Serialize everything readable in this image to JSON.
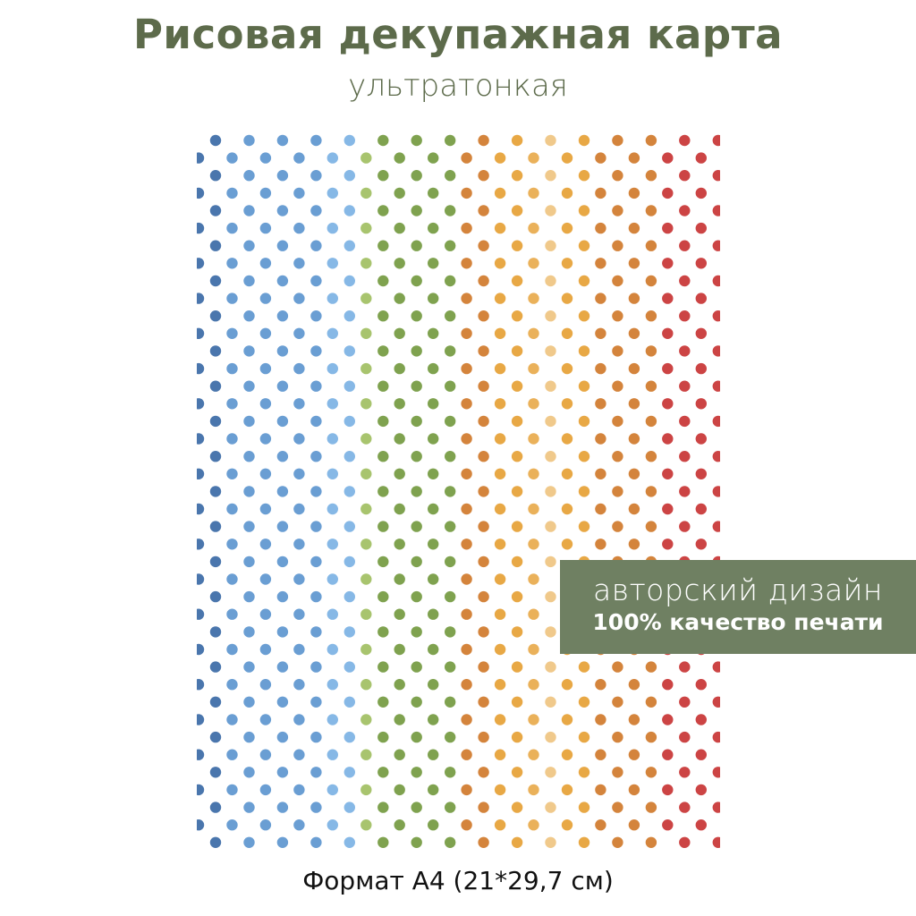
{
  "header": {
    "title": "Рисовая декупажная карта",
    "subtitle": "ультратонкая"
  },
  "badge": {
    "line1": "авторский дизайн",
    "line2": "100% качество печати"
  },
  "footer": {
    "format": "Формат А4 (21*29,7 см)"
  },
  "pattern": {
    "type": "polka-dot",
    "rows": 41,
    "odd_row_colors": [
      "#4a76ad",
      "#6a9ed3",
      "#6a9ed3",
      "#6a9ed3",
      "#86b8e6",
      "#7fa24f",
      "#7fa24f",
      "#7fa24f",
      "#d4843c",
      "#e8a845",
      "#f0c98b",
      "#e8a845",
      "#d4843c",
      "#d4843c",
      "#cc4444",
      "#cc4444"
    ],
    "even_row_colors": [
      "#4a76ad",
      "#6a9ed3",
      "#6a9ed3",
      "#6a9ed3",
      "#86b8e6",
      "#a8c46e",
      "#7fa24f",
      "#7fa24f",
      "#d4843c",
      "#e8a845",
      "#eab15a",
      "#e8a845",
      "#d4843c",
      "#d4843c",
      "#cc4444",
      "#cc4444"
    ]
  },
  "colors": {
    "brand": "#5d6b4b",
    "badge_bg": "#6f8062"
  }
}
